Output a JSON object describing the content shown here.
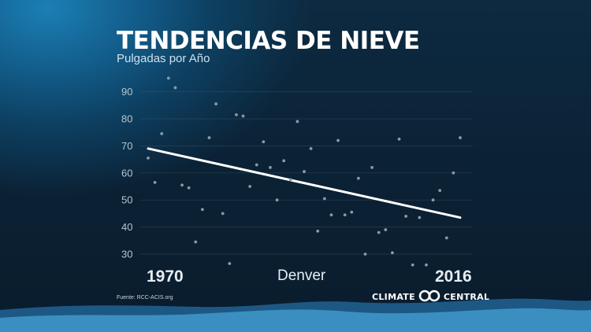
{
  "title": "TENDENCIAS DE NIEVE",
  "subtitle": "Pulgadas por Año",
  "station": "Denver",
  "source": "Fuente: RCC-ACIS.org",
  "brand": {
    "left": "CLIMATE",
    "right": "CENTRAL",
    "logo_icon": "climate-central-logo-icon"
  },
  "colors": {
    "points": "#8a9aa8",
    "trend": "#ffffff",
    "grid": "#40566a",
    "wave_light": "#3b8fc0",
    "wave_dark": "#1f5f8f"
  },
  "chart_data": {
    "type": "scatter",
    "title": "TENDENCIAS DE NIEVE",
    "subtitle": "Pulgadas por Año",
    "xlabel": "",
    "ylabel": "",
    "xlim": [
      1970,
      2016
    ],
    "ylim": [
      25,
      95
    ],
    "yticks": [
      30,
      40,
      50,
      60,
      70,
      80,
      90
    ],
    "xtick_labels": [
      "1970",
      "2016"
    ],
    "grid": true,
    "x": [
      1970,
      1971,
      1972,
      1973,
      1974,
      1975,
      1976,
      1977,
      1978,
      1979,
      1980,
      1981,
      1982,
      1983,
      1984,
      1985,
      1986,
      1987,
      1988,
      1989,
      1990,
      1991,
      1992,
      1993,
      1994,
      1995,
      1996,
      1997,
      1998,
      1999,
      2000,
      2001,
      2002,
      2003,
      2004,
      2005,
      2006,
      2007,
      2008,
      2009,
      2010,
      2011,
      2012,
      2013,
      2014,
      2015,
      2016
    ],
    "y": [
      65.5,
      56.5,
      74.5,
      95,
      91.5,
      55.5,
      54.5,
      34.5,
      46.5,
      73,
      85.5,
      45,
      26.5,
      81.5,
      81,
      55,
      63,
      71.5,
      62,
      50,
      64.5,
      57.5,
      79,
      60.5,
      69,
      38.5,
      50.5,
      44.5,
      72,
      44.5,
      45.5,
      58,
      30,
      62,
      38,
      39,
      30.5,
      72.5,
      44,
      26,
      43.5,
      26,
      50,
      53.5,
      36,
      60,
      73
    ],
    "trend": {
      "x": [
        1970,
        2016
      ],
      "y": [
        69,
        43.5
      ]
    }
  }
}
